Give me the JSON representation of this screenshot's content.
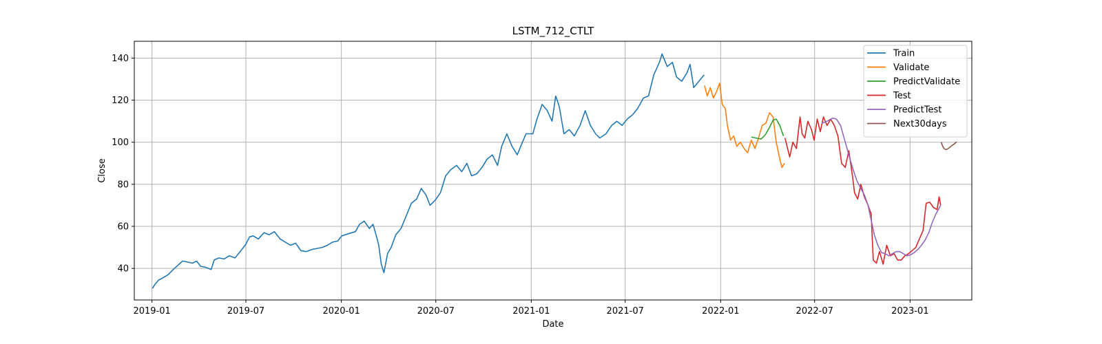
{
  "chart_data": {
    "type": "line",
    "title": "LSTM_712_CTLT",
    "xlabel": "Date",
    "ylabel": "Close",
    "grid": true,
    "legend_position": "top-right",
    "xlim": [
      "2018-11-28",
      "2023-04-30"
    ],
    "ylim": [
      25,
      148
    ],
    "x_ticks": [
      "2019-01",
      "2019-07",
      "2020-01",
      "2020-07",
      "2021-01",
      "2021-07",
      "2022-01",
      "2022-07",
      "2023-01"
    ],
    "y_ticks": [
      40,
      60,
      80,
      100,
      120,
      140
    ],
    "series": [
      {
        "name": "Train",
        "color": "#1f77b4",
        "points": [
          [
            "2019-01-02",
            30.5
          ],
          [
            "2019-01-07",
            32.5
          ],
          [
            "2019-01-14",
            34.5
          ],
          [
            "2019-01-22",
            35.5
          ],
          [
            "2019-02-01",
            37.0
          ],
          [
            "2019-02-11",
            39.5
          ],
          [
            "2019-02-20",
            41.5
          ],
          [
            "2019-03-01",
            43.5
          ],
          [
            "2019-03-11",
            43.0
          ],
          [
            "2019-03-20",
            42.5
          ],
          [
            "2019-03-28",
            43.5
          ],
          [
            "2019-04-05",
            41.0
          ],
          [
            "2019-04-15",
            40.5
          ],
          [
            "2019-04-25",
            39.5
          ],
          [
            "2019-05-01",
            44.0
          ],
          [
            "2019-05-10",
            45.0
          ],
          [
            "2019-05-20",
            44.5
          ],
          [
            "2019-05-30",
            46.0
          ],
          [
            "2019-06-10",
            45.0
          ],
          [
            "2019-06-20",
            48.0
          ],
          [
            "2019-07-01",
            51.5
          ],
          [
            "2019-07-08",
            55.0
          ],
          [
            "2019-07-15",
            55.5
          ],
          [
            "2019-07-25",
            54.0
          ],
          [
            "2019-08-05",
            57.0
          ],
          [
            "2019-08-15",
            56.0
          ],
          [
            "2019-08-25",
            57.5
          ],
          [
            "2019-09-05",
            54.0
          ],
          [
            "2019-09-15",
            52.5
          ],
          [
            "2019-09-25",
            51.0
          ],
          [
            "2019-10-05",
            52.0
          ],
          [
            "2019-10-15",
            48.5
          ],
          [
            "2019-10-25",
            48.0
          ],
          [
            "2019-11-05",
            49.0
          ],
          [
            "2019-11-15",
            49.5
          ],
          [
            "2019-11-25",
            50.0
          ],
          [
            "2019-12-05",
            51.0
          ],
          [
            "2019-12-15",
            52.5
          ],
          [
            "2019-12-25",
            53.0
          ],
          [
            "2020-01-02",
            55.5
          ],
          [
            "2020-01-15",
            56.5
          ],
          [
            "2020-01-28",
            57.5
          ],
          [
            "2020-02-05",
            61.0
          ],
          [
            "2020-02-14",
            62.5
          ],
          [
            "2020-02-24",
            59.0
          ],
          [
            "2020-03-02",
            61.0
          ],
          [
            "2020-03-09",
            55.0
          ],
          [
            "2020-03-13",
            51.0
          ],
          [
            "2020-03-18",
            42.0
          ],
          [
            "2020-03-23",
            38.0
          ],
          [
            "2020-03-30",
            47.0
          ],
          [
            "2020-04-06",
            50.0
          ],
          [
            "2020-04-15",
            56.0
          ],
          [
            "2020-04-25",
            59.0
          ],
          [
            "2020-05-05",
            65.0
          ],
          [
            "2020-05-15",
            71.0
          ],
          [
            "2020-05-25",
            73.0
          ],
          [
            "2020-06-03",
            78.0
          ],
          [
            "2020-06-12",
            75.0
          ],
          [
            "2020-06-20",
            70.0
          ],
          [
            "2020-06-30",
            72.5
          ],
          [
            "2020-07-10",
            76.0
          ],
          [
            "2020-07-20",
            84.0
          ],
          [
            "2020-07-30",
            87.0
          ],
          [
            "2020-08-10",
            89.0
          ],
          [
            "2020-08-20",
            86.0
          ],
          [
            "2020-08-30",
            90.0
          ],
          [
            "2020-09-08",
            84.0
          ],
          [
            "2020-09-18",
            85.0
          ],
          [
            "2020-09-28",
            88.0
          ],
          [
            "2020-10-08",
            92.0
          ],
          [
            "2020-10-18",
            94.0
          ],
          [
            "2020-10-28",
            89.0
          ],
          [
            "2020-11-05",
            98.0
          ],
          [
            "2020-11-15",
            104.0
          ],
          [
            "2020-11-25",
            98.0
          ],
          [
            "2020-12-05",
            94.0
          ],
          [
            "2020-12-15",
            100.0
          ],
          [
            "2020-12-22",
            104.0
          ],
          [
            "2021-01-04",
            104.0
          ],
          [
            "2021-01-12",
            111.0
          ],
          [
            "2021-01-22",
            118.0
          ],
          [
            "2021-02-01",
            115.0
          ],
          [
            "2021-02-10",
            110.0
          ],
          [
            "2021-02-17",
            122.0
          ],
          [
            "2021-02-24",
            117.0
          ],
          [
            "2021-03-05",
            104.0
          ],
          [
            "2021-03-15",
            106.0
          ],
          [
            "2021-03-25",
            103.0
          ],
          [
            "2021-04-05",
            108.0
          ],
          [
            "2021-04-15",
            115.0
          ],
          [
            "2021-04-25",
            108.0
          ],
          [
            "2021-05-05",
            104.0
          ],
          [
            "2021-05-13",
            102.0
          ],
          [
            "2021-05-25",
            104.0
          ],
          [
            "2021-06-05",
            108.0
          ],
          [
            "2021-06-15",
            110.0
          ],
          [
            "2021-06-25",
            108.0
          ],
          [
            "2021-07-05",
            111.0
          ],
          [
            "2021-07-15",
            113.0
          ],
          [
            "2021-07-25",
            116.0
          ],
          [
            "2021-08-05",
            121.0
          ],
          [
            "2021-08-15",
            122.0
          ],
          [
            "2021-08-25",
            132.0
          ],
          [
            "2021-09-05",
            138.0
          ],
          [
            "2021-09-10",
            142.0
          ],
          [
            "2021-09-20",
            136.0
          ],
          [
            "2021-09-30",
            138.0
          ],
          [
            "2021-10-08",
            131.0
          ],
          [
            "2021-10-18",
            129.0
          ],
          [
            "2021-10-28",
            133.0
          ],
          [
            "2021-11-03",
            137.0
          ],
          [
            "2021-11-10",
            126.0
          ],
          [
            "2021-11-20",
            129.0
          ],
          [
            "2021-11-30",
            132.0
          ]
        ]
      },
      {
        "name": "Validate",
        "color": "#ff7f0e",
        "points": [
          [
            "2021-12-01",
            127.0
          ],
          [
            "2021-12-06",
            122.0
          ],
          [
            "2021-12-12",
            126.0
          ],
          [
            "2021-12-18",
            121.0
          ],
          [
            "2021-12-24",
            124.0
          ],
          [
            "2021-12-30",
            128.0
          ],
          [
            "2022-01-04",
            118.0
          ],
          [
            "2022-01-10",
            116.0
          ],
          [
            "2022-01-14",
            108.0
          ],
          [
            "2022-01-20",
            101.0
          ],
          [
            "2022-01-26",
            103.0
          ],
          [
            "2022-02-01",
            98.0
          ],
          [
            "2022-02-08",
            100.0
          ],
          [
            "2022-02-15",
            97.0
          ],
          [
            "2022-02-22",
            95.0
          ],
          [
            "2022-03-01",
            101.0
          ],
          [
            "2022-03-08",
            97.0
          ],
          [
            "2022-03-15",
            102.0
          ],
          [
            "2022-03-22",
            108.0
          ],
          [
            "2022-03-29",
            109.0
          ],
          [
            "2022-04-05",
            114.0
          ],
          [
            "2022-04-12",
            112.0
          ],
          [
            "2022-04-18",
            100.0
          ],
          [
            "2022-04-25",
            92.0
          ],
          [
            "2022-04-29",
            88.0
          ],
          [
            "2022-05-04",
            90.0
          ]
        ]
      },
      {
        "name": "PredictValidate",
        "color": "#2ca02c",
        "points": [
          [
            "2022-03-01",
            102.5
          ],
          [
            "2022-03-10",
            102.0
          ],
          [
            "2022-03-20",
            101.5
          ],
          [
            "2022-03-28",
            103.5
          ],
          [
            "2022-04-05",
            107.0
          ],
          [
            "2022-04-12",
            110.5
          ],
          [
            "2022-04-18",
            111.0
          ],
          [
            "2022-04-25",
            108.0
          ],
          [
            "2022-05-02",
            103.0
          ]
        ]
      },
      {
        "name": "Test",
        "color": "#d62728",
        "points": [
          [
            "2022-05-05",
            102.0
          ],
          [
            "2022-05-10",
            97.0
          ],
          [
            "2022-05-14",
            93.0
          ],
          [
            "2022-05-20",
            100.0
          ],
          [
            "2022-05-27",
            97.0
          ],
          [
            "2022-06-03",
            112.0
          ],
          [
            "2022-06-07",
            104.0
          ],
          [
            "2022-06-12",
            102.0
          ],
          [
            "2022-06-18",
            110.0
          ],
          [
            "2022-06-25",
            106.0
          ],
          [
            "2022-06-30",
            101.0
          ],
          [
            "2022-07-06",
            111.0
          ],
          [
            "2022-07-12",
            105.0
          ],
          [
            "2022-07-18",
            112.0
          ],
          [
            "2022-07-25",
            108.0
          ],
          [
            "2022-08-01",
            111.0
          ],
          [
            "2022-08-08",
            108.0
          ],
          [
            "2022-08-15",
            103.0
          ],
          [
            "2022-08-22",
            90.0
          ],
          [
            "2022-08-29",
            88.0
          ],
          [
            "2022-09-05",
            96.0
          ],
          [
            "2022-09-12",
            84.0
          ],
          [
            "2022-09-16",
            76.0
          ],
          [
            "2022-09-22",
            73.0
          ],
          [
            "2022-09-28",
            80.0
          ],
          [
            "2022-10-05",
            74.0
          ],
          [
            "2022-10-12",
            70.0
          ],
          [
            "2022-10-18",
            66.0
          ],
          [
            "2022-10-22",
            44.0
          ],
          [
            "2022-10-28",
            42.5
          ],
          [
            "2022-11-03",
            48.0
          ],
          [
            "2022-11-10",
            42.0
          ],
          [
            "2022-11-17",
            51.0
          ],
          [
            "2022-11-24",
            46.0
          ],
          [
            "2022-12-01",
            47.0
          ],
          [
            "2022-12-08",
            44.0
          ],
          [
            "2022-12-15",
            44.0
          ],
          [
            "2022-12-22",
            46.0
          ],
          [
            "2022-12-29",
            47.0
          ],
          [
            "2023-01-05",
            48.5
          ],
          [
            "2023-01-12",
            50.0
          ],
          [
            "2023-01-19",
            54.0
          ],
          [
            "2023-01-26",
            58.0
          ],
          [
            "2023-02-01",
            71.0
          ],
          [
            "2023-02-08",
            71.5
          ],
          [
            "2023-02-15",
            69.0
          ],
          [
            "2023-02-22",
            68.0
          ],
          [
            "2023-02-26",
            74.0
          ],
          [
            "2023-03-01",
            70.0
          ]
        ]
      },
      {
        "name": "PredictTest",
        "color": "#9467bd",
        "points": [
          [
            "2022-07-15",
            109.0
          ],
          [
            "2022-07-25",
            110.0
          ],
          [
            "2022-08-05",
            111.5
          ],
          [
            "2022-08-12",
            111.0
          ],
          [
            "2022-08-20",
            108.0
          ],
          [
            "2022-08-28",
            101.0
          ],
          [
            "2022-09-05",
            94.0
          ],
          [
            "2022-09-12",
            88.0
          ],
          [
            "2022-09-20",
            82.0
          ],
          [
            "2022-09-28",
            78.0
          ],
          [
            "2022-10-05",
            75.0
          ],
          [
            "2022-10-12",
            70.0
          ],
          [
            "2022-10-18",
            63.0
          ],
          [
            "2022-10-24",
            56.0
          ],
          [
            "2022-10-31",
            51.0
          ],
          [
            "2022-11-07",
            47.5
          ],
          [
            "2022-11-14",
            47.0
          ],
          [
            "2022-11-21",
            46.0
          ],
          [
            "2022-11-28",
            47.0
          ],
          [
            "2022-12-05",
            48.0
          ],
          [
            "2022-12-12",
            48.0
          ],
          [
            "2022-12-19",
            47.0
          ],
          [
            "2022-12-26",
            46.0
          ],
          [
            "2023-01-02",
            46.5
          ],
          [
            "2023-01-09",
            47.5
          ],
          [
            "2023-01-16",
            49.0
          ],
          [
            "2023-01-23",
            51.0
          ],
          [
            "2023-01-30",
            53.5
          ],
          [
            "2023-02-06",
            57.0
          ],
          [
            "2023-02-13",
            62.0
          ],
          [
            "2023-02-20",
            66.0
          ],
          [
            "2023-03-01",
            70.0
          ]
        ]
      },
      {
        "name": "Next30days",
        "color": "#8c564b",
        "points": [
          [
            "2023-03-02",
            100.0
          ],
          [
            "2023-03-05",
            98.0
          ],
          [
            "2023-03-08",
            96.8
          ],
          [
            "2023-03-12",
            96.5
          ],
          [
            "2023-03-17",
            97.3
          ],
          [
            "2023-03-22",
            98.3
          ],
          [
            "2023-03-27",
            99.2
          ],
          [
            "2023-04-01",
            100.2
          ]
        ]
      }
    ]
  }
}
